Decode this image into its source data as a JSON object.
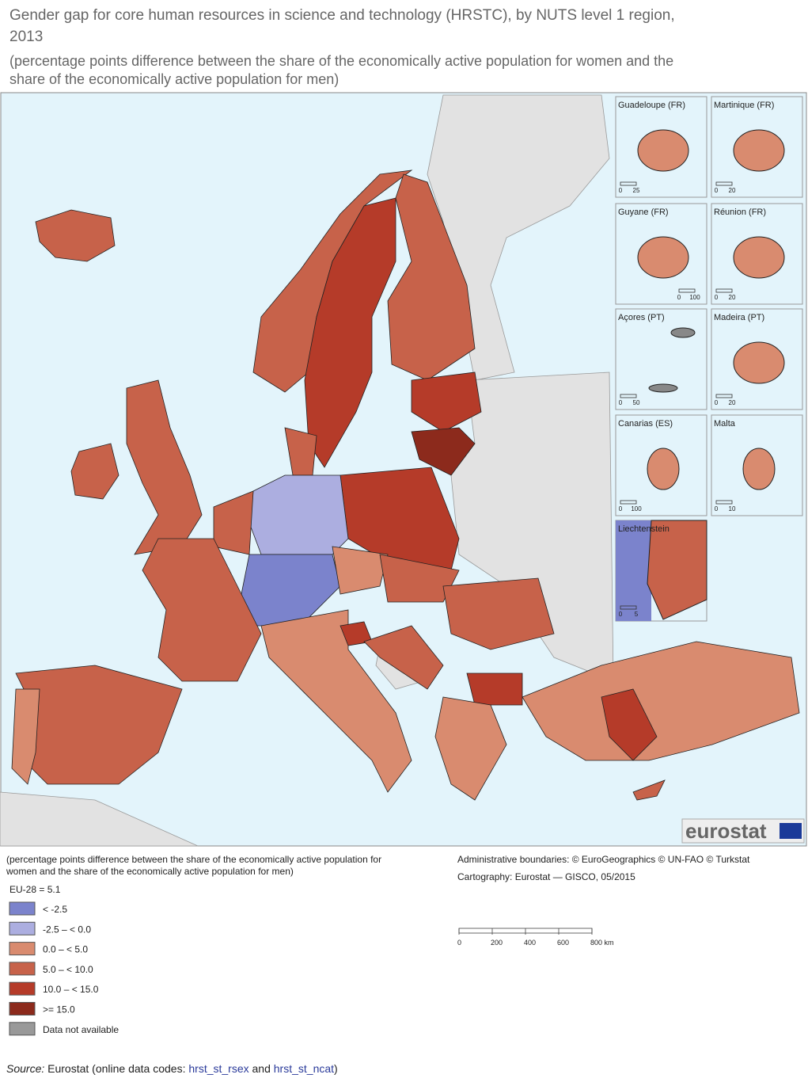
{
  "header": {
    "title_line1": "Gender gap for core human resources in science and technology (HRSTC), by NUTS level 1 region,",
    "title_line2": "2013",
    "subtitle_line1": "(percentage points difference between the share of the economically active population for women and the",
    "subtitle_line2": "share of the economically active population for men)"
  },
  "insets": [
    {
      "name": "Guadeloupe (FR)",
      "scale": [
        "0",
        "25"
      ]
    },
    {
      "name": "Martinique (FR)",
      "scale": [
        "0",
        "20"
      ]
    },
    {
      "name": "Guyane (FR)",
      "scale": [
        "0",
        "100"
      ]
    },
    {
      "name": "Réunion (FR)",
      "scale": [
        "0",
        "20"
      ]
    },
    {
      "name": "Açores (PT)",
      "scale": [
        "0",
        "50"
      ]
    },
    {
      "name": "Madeira (PT)",
      "scale": [
        "0",
        "20"
      ]
    },
    {
      "name": "Canarias (ES)",
      "scale": [
        "0",
        "100"
      ]
    },
    {
      "name": "Malta",
      "scale": [
        "0",
        "10"
      ]
    },
    {
      "name": "Liechtenstein",
      "scale": [
        "0",
        "5"
      ]
    }
  ],
  "logo": "eurostat",
  "legend": {
    "note_line1": "(percentage points difference between the share of the economically active population for",
    "note_line2": "women and the share of the economically active population for men)",
    "eu28": "EU-28 = 5.1",
    "items": [
      {
        "label": "< -2.5",
        "color": "#7b83cc"
      },
      {
        "label": "-2.5 – < 0.0",
        "color": "#acaee0"
      },
      {
        "label": "0.0 – < 5.0",
        "color": "#d98b6f"
      },
      {
        "label": "5.0 – < 10.0",
        "color": "#c7624a"
      },
      {
        "label": "10.0 – < 15.0",
        "color": "#b53b29"
      },
      {
        "label": ">= 15.0",
        "color": "#8c2a1c"
      },
      {
        "label": "Data not available",
        "color": "#999999"
      }
    ]
  },
  "credits": {
    "line1": "Administrative boundaries: © EuroGeographics © UN-FAO © Turkstat",
    "line2": "Cartography: Eurostat — GISCO, 05/2015"
  },
  "scalebar": [
    "0",
    "200",
    "400",
    "600",
    "800 km"
  ],
  "source": {
    "label": "Source:",
    "text": "Eurostat (online data codes:",
    "code1": "hrst_st_rsex",
    "and": "and",
    "code2": "hrst_st_ncat",
    "close": ")"
  }
}
